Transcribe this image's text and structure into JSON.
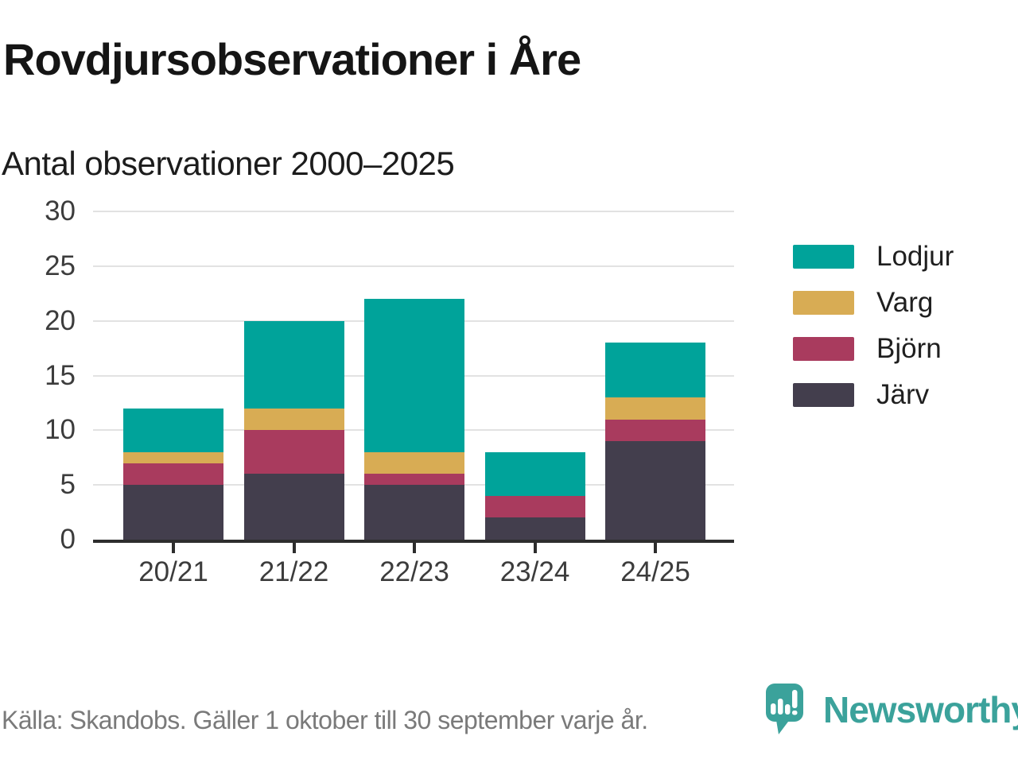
{
  "title": "Rovdjursobservationer i Åre",
  "subtitle": "Antal observationer 2000–2025",
  "source": "Källa: Skandobs. Gäller 1 oktober till 30 september varje år.",
  "brand": {
    "name": "Newsworthy",
    "color": "#3ba29b",
    "icon": "speech-bubble-bar-chart-icon"
  },
  "chart_data": {
    "type": "bar",
    "stacked": true,
    "title": "Rovdjursobservationer i Åre",
    "subtitle": "Antal observationer 2000–2025",
    "categories": [
      "20/21",
      "21/22",
      "22/23",
      "23/24",
      "24/25"
    ],
    "series": [
      {
        "name": "Järv",
        "color": "#433e4d",
        "values": [
          5,
          6,
          5,
          2,
          9
        ]
      },
      {
        "name": "Björn",
        "color": "#a93b5e",
        "values": [
          2,
          4,
          1,
          2,
          2
        ]
      },
      {
        "name": "Varg",
        "color": "#d8ac54",
        "values": [
          1,
          2,
          2,
          0,
          2
        ]
      },
      {
        "name": "Lodjur",
        "color": "#00a39a",
        "values": [
          4,
          8,
          14,
          4,
          5
        ]
      }
    ],
    "totals": [
      12,
      20,
      22,
      8,
      18
    ],
    "xlabel": "",
    "ylabel": "",
    "ylim": [
      0,
      30
    ],
    "yticks": [
      0,
      5,
      10,
      15,
      20,
      25,
      30
    ],
    "grid": true,
    "gridline_color": "#e2e2e2",
    "axis_color": "#2d2d2d",
    "legend": [
      "Lodjur",
      "Varg",
      "Björn",
      "Järv"
    ],
    "legend_position": "right"
  }
}
